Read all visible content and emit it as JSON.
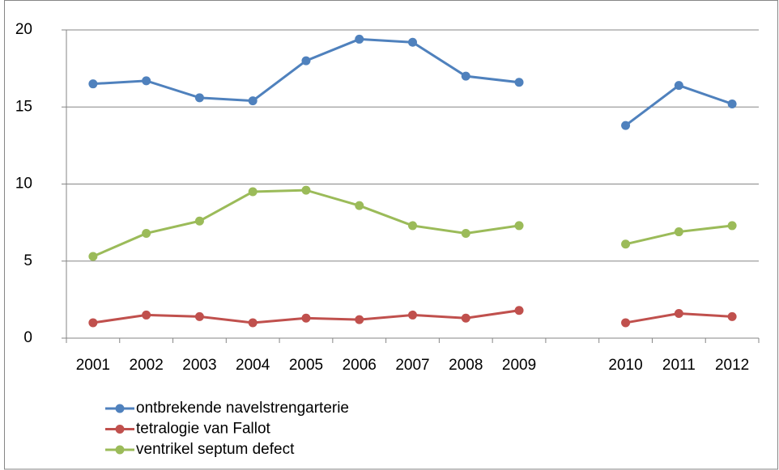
{
  "chart_data": {
    "type": "line",
    "categories": [
      "2001",
      "2002",
      "2003",
      "2004",
      "2005",
      "2006",
      "2007",
      "2008",
      "2009",
      null,
      "2010",
      "2011",
      "2012"
    ],
    "series": [
      {
        "name": "ontbrekende navelstrengarterie",
        "color": "#4f81bd",
        "values": [
          16.5,
          16.7,
          15.6,
          15.4,
          18.0,
          19.4,
          19.2,
          17.0,
          16.6,
          null,
          13.8,
          16.4,
          15.2
        ]
      },
      {
        "name": "tetralogie van Fallot",
        "color": "#c0504d",
        "values": [
          1.0,
          1.5,
          1.4,
          1.0,
          1.3,
          1.2,
          1.5,
          1.3,
          1.8,
          null,
          1.0,
          1.6,
          1.4
        ]
      },
      {
        "name": "ventrikel septum defect",
        "color": "#9bbb59",
        "values": [
          5.3,
          6.8,
          7.6,
          9.5,
          9.6,
          8.6,
          7.3,
          6.8,
          7.3,
          null,
          6.1,
          6.9,
          7.3
        ]
      }
    ],
    "ylim": [
      0,
      20
    ],
    "yticks": [
      0,
      5,
      10,
      15,
      20
    ],
    "grid": true,
    "legend": "bottom-left"
  }
}
